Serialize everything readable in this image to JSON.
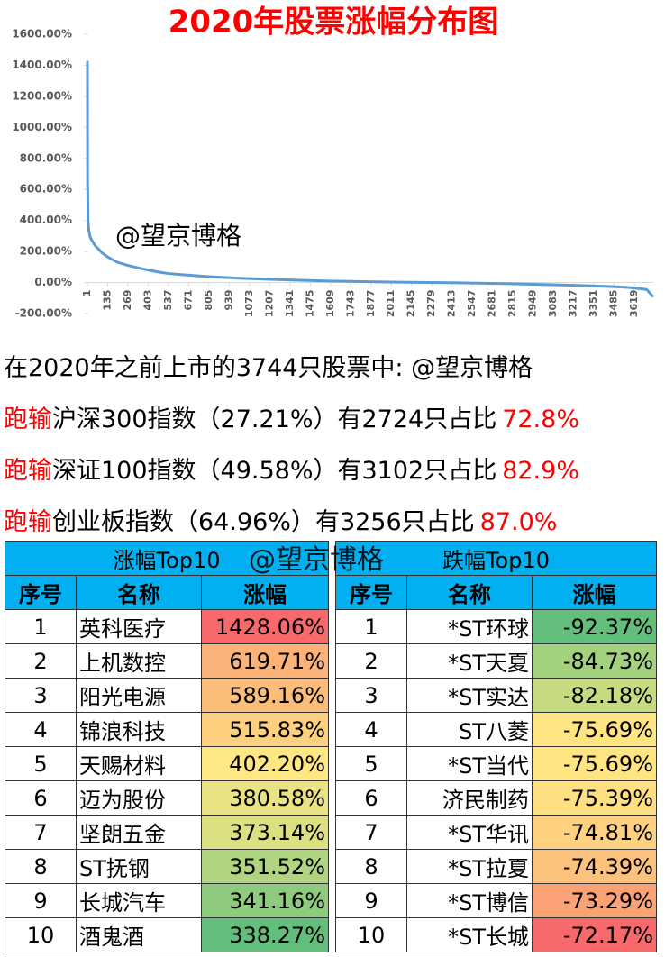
{
  "chart_data": {
    "type": "line",
    "title": "2020年股票涨幅分布图",
    "annotation": "@望京博格",
    "x": [
      1,
      2,
      3,
      4,
      5,
      10,
      20,
      50,
      100,
      135,
      200,
      269,
      403,
      488,
      537,
      642,
      805,
      1020,
      1300,
      1600,
      2000,
      2400,
      2800,
      3200,
      3500,
      3600,
      3700,
      3744
    ],
    "series": [
      {
        "color": "#5b9bd5",
        "values": [
          1428.06,
          619.71,
          589.16,
          515.83,
          402.2,
          338,
          290,
          240,
          190,
          165,
          130,
          110,
          80,
          64.96,
          58,
          49.58,
          38,
          27.21,
          18,
          10,
          3,
          -1,
          -8,
          -17,
          -27,
          -33,
          -45,
          -92.37
        ]
      }
    ],
    "xlim": [
      1,
      3744
    ],
    "xticks": [
      1,
      135,
      269,
      403,
      537,
      671,
      805,
      939,
      1073,
      1207,
      1341,
      1475,
      1609,
      1743,
      1877,
      2011,
      2145,
      2279,
      2413,
      2547,
      2681,
      2815,
      2949,
      3083,
      3217,
      3351,
      3485,
      3619
    ],
    "ylim": [
      -200,
      1600
    ],
    "yticks": [
      {
        "value": -200,
        "label": "-200.00%"
      },
      {
        "value": 0,
        "label": "0.00%"
      },
      {
        "value": 200,
        "label": "200.00%"
      },
      {
        "value": 400,
        "label": "400.00%"
      },
      {
        "value": 600,
        "label": "600.00%"
      },
      {
        "value": 800,
        "label": "800.00%"
      },
      {
        "value": 1000,
        "label": "1000.00%"
      },
      {
        "value": 1200,
        "label": "1200.00%"
      },
      {
        "value": 1400,
        "label": "1400.00%"
      },
      {
        "value": 1600,
        "label": "1600.00%"
      }
    ]
  },
  "summary": {
    "intro": "在2020年之前上市的3744只股票中:",
    "watermark": "@望京博格",
    "lines": [
      {
        "lead": "跑输",
        "text": "沪深300指数（27.21%）有2724只占比",
        "share": "72.8%"
      },
      {
        "lead": "跑输",
        "text": "深证100指数（49.58%）有3102只占比",
        "share": "82.9%"
      },
      {
        "lead": "跑输",
        "text": "创业板指数（64.96%）有3256只占比",
        "share": "87.0%"
      }
    ]
  },
  "tables": {
    "watermark": "@望京博格",
    "gainers": {
      "title": "涨幅Top10",
      "columns": [
        "序号",
        "名称",
        "涨幅"
      ],
      "rows": [
        [
          1,
          "英科医疗",
          "1428.06%"
        ],
        [
          2,
          "上机数控",
          "619.71%"
        ],
        [
          3,
          "阳光电源",
          "589.16%"
        ],
        [
          4,
          "锦浪科技",
          "515.83%"
        ],
        [
          5,
          "天赐材料",
          "402.20%"
        ],
        [
          6,
          "迈为股份",
          "380.58%"
        ],
        [
          7,
          "坚朗五金",
          "373.14%"
        ],
        [
          8,
          "ST抚钢",
          "351.52%"
        ],
        [
          9,
          "长城汽车",
          "341.16%"
        ],
        [
          10,
          "酒鬼酒",
          "338.27%"
        ]
      ],
      "colors": [
        "#f8696b",
        "#fbb37a",
        "#fcbd7b",
        "#fdd07f",
        "#ffe784",
        "#e9e383",
        "#dce081",
        "#b0d47f",
        "#8ecb7e",
        "#63be7b"
      ]
    },
    "losers": {
      "title": "跌幅Top10",
      "columns": [
        "序号",
        "名称",
        "涨幅"
      ],
      "rows": [
        [
          1,
          "*ST环球",
          "-92.37%"
        ],
        [
          2,
          "*ST天夏",
          "-84.73%"
        ],
        [
          3,
          "*ST实达",
          "-82.18%"
        ],
        [
          4,
          "ST八菱",
          "-75.69%"
        ],
        [
          5,
          "*ST当代",
          "-75.69%"
        ],
        [
          6,
          "济民制药",
          "-75.39%"
        ],
        [
          7,
          "*ST华讯",
          "-74.81%"
        ],
        [
          8,
          "*ST拉夏",
          "-74.39%"
        ],
        [
          9,
          "*ST博信",
          "-73.29%"
        ],
        [
          10,
          "*ST长城",
          "-72.17%"
        ]
      ],
      "colors": [
        "#63be7b",
        "#a4d17e",
        "#c6db80",
        "#fee582",
        "#fee582",
        "#fee082",
        "#fdd17f",
        "#fcc17c",
        "#fba276",
        "#f8696b"
      ]
    }
  }
}
